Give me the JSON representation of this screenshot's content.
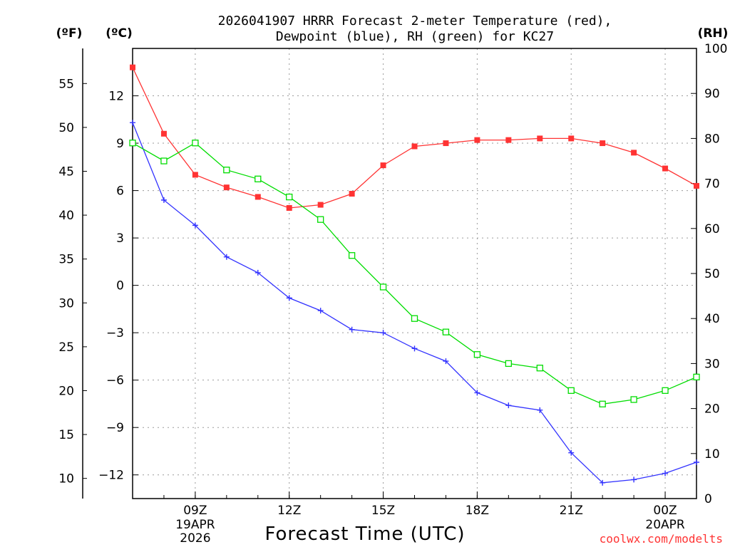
{
  "chart_data": {
    "type": "line",
    "title_line1": "2026041907 HRRR Forecast 2-meter Temperature (red),",
    "title_line2": "Dewpoint (blue), RH (green) for KC27",
    "xlabel": "Forecast Time (UTC)",
    "credit": "coolwx.com/modelts",
    "units": {
      "fahrenheit": "(ºF)",
      "celsius": "(ºC)",
      "rh": "(RH)"
    },
    "x_hours": [
      7,
      8,
      9,
      10,
      11,
      12,
      13,
      14,
      15,
      16,
      17,
      18,
      19,
      20,
      21,
      22,
      23,
      24,
      25
    ],
    "x_range": [
      7,
      25
    ],
    "x_ticks": [
      {
        "hour": 9,
        "label": "09Z",
        "sub1": "19APR",
        "sub2": "2026"
      },
      {
        "hour": 12,
        "label": "12Z"
      },
      {
        "hour": 15,
        "label": "15Z"
      },
      {
        "hour": 18,
        "label": "18Z"
      },
      {
        "hour": 21,
        "label": "21Z"
      },
      {
        "hour": 24,
        "label": "00Z",
        "sub1": "20APR"
      }
    ],
    "y_celsius": {
      "range": [
        -13.5,
        15
      ],
      "ticks": [
        "12",
        "9",
        "6",
        "3",
        "0",
        "−3",
        "−6",
        "−9",
        "−12"
      ],
      "tick_values": [
        12,
        9,
        6,
        3,
        0,
        -3,
        -6,
        -9,
        -12
      ]
    },
    "y_fahrenheit": {
      "ticks": [
        "55",
        "50",
        "45",
        "40",
        "35",
        "30",
        "25",
        "20",
        "15",
        "10"
      ],
      "tick_values": [
        55,
        50,
        45,
        40,
        35,
        30,
        25,
        20,
        15,
        10
      ]
    },
    "y_rh": {
      "range": [
        0,
        100
      ],
      "ticks": [
        "100",
        "90",
        "80",
        "70",
        "60",
        "50",
        "40",
        "30",
        "20",
        "10",
        "0"
      ],
      "tick_values": [
        100,
        90,
        80,
        70,
        60,
        50,
        40,
        30,
        20,
        10,
        0
      ]
    },
    "series": [
      {
        "name": "Temperature",
        "axis": "celsius",
        "color": "#ff3333",
        "marker": "filled-square",
        "values": [
          13.8,
          9.6,
          7.0,
          6.2,
          5.6,
          4.9,
          5.1,
          5.8,
          7.6,
          8.8,
          9.0,
          9.2,
          9.2,
          9.3,
          9.3,
          9.0,
          8.4,
          7.4,
          6.3
        ]
      },
      {
        "name": "Dewpoint",
        "axis": "celsius",
        "color": "#3333ff",
        "marker": "plus",
        "values": [
          10.3,
          5.4,
          3.8,
          1.8,
          0.8,
          -0.8,
          -1.6,
          -2.8,
          -3.0,
          -4.0,
          -4.8,
          -6.8,
          -7.6,
          -7.9,
          -10.6,
          -12.5,
          -12.3,
          -11.9,
          -11.2
        ]
      },
      {
        "name": "RH",
        "axis": "rh",
        "color": "#00dd00",
        "marker": "open-square",
        "values": [
          79,
          75,
          79,
          73,
          71,
          67,
          62,
          54,
          47,
          40,
          37,
          32,
          30,
          29,
          24,
          21,
          22,
          24,
          27
        ]
      }
    ]
  }
}
